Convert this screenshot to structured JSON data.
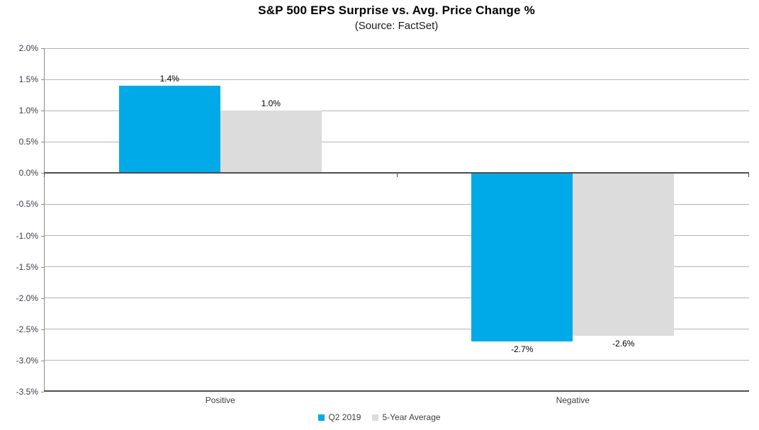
{
  "title": "S&P 500 EPS Surprise vs. Avg. Price Change %",
  "subtitle": "(Source: FactSet)",
  "chart_data": {
    "type": "bar",
    "categories": [
      "Positive",
      "Negative"
    ],
    "series": [
      {
        "name": "Q2 2019",
        "color": "#00AAE8",
        "values": [
          1.4,
          -2.7
        ],
        "labels": [
          "1.4%",
          "-2.7%"
        ]
      },
      {
        "name": "5-Year Average",
        "color": "#DCDCDC",
        "values": [
          1.0,
          -2.6
        ],
        "labels": [
          "1.0%",
          "-2.6%"
        ]
      }
    ],
    "ylim": [
      -3.5,
      2.0
    ],
    "ytick_step": 0.5,
    "ytick_labels": [
      "2.0%",
      "1.5%",
      "1.0%",
      "0.5%",
      "0.0%",
      "-0.5%",
      "-1.0%",
      "-1.5%",
      "-2.0%",
      "-2.5%",
      "-3.0%",
      "-3.5%"
    ],
    "grid": true,
    "legend_position": "bottom",
    "zero_axis_color": "#4d4d4d",
    "gridline_color": "#b3b3b3"
  }
}
